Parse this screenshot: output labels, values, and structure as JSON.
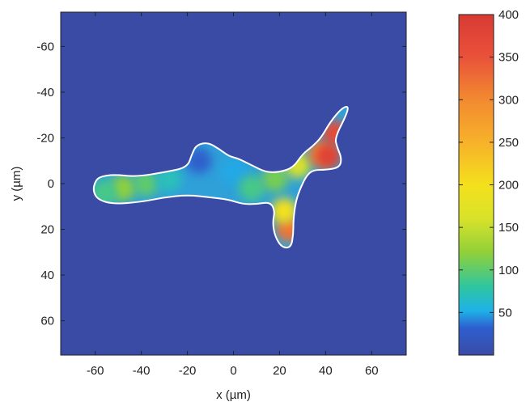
{
  "chart_data": {
    "type": "heatmap",
    "title": "",
    "xlabel": "x (µm)",
    "ylabel": "y (µm)",
    "xlim": [
      -75,
      75
    ],
    "ylim": [
      -75,
      75
    ],
    "y_inverted": true,
    "x_ticks": [
      -60,
      -40,
      -20,
      0,
      20,
      40,
      60
    ],
    "y_ticks": [
      -60,
      -40,
      -20,
      0,
      20,
      40,
      60
    ],
    "grid": false,
    "background_color": "#3a4ba6",
    "outline_color": "#ffffff",
    "colorbar": {
      "range": [
        0,
        400
      ],
      "ticks": [
        50,
        100,
        150,
        200,
        250,
        300,
        350,
        400
      ],
      "colormap": "jet"
    },
    "cell_outline": [
      [
        -58,
        -3
      ],
      [
        -52,
        -4
      ],
      [
        -42,
        -3
      ],
      [
        -30,
        -5
      ],
      [
        -20,
        -7
      ],
      [
        -18,
        -13
      ],
      [
        -16,
        -17
      ],
      [
        -11,
        -18
      ],
      [
        -6,
        -15
      ],
      [
        -2,
        -12
      ],
      [
        2,
        -11
      ],
      [
        8,
        -8
      ],
      [
        14,
        -5
      ],
      [
        20,
        -5
      ],
      [
        26,
        -7
      ],
      [
        30,
        -13
      ],
      [
        34,
        -16
      ],
      [
        38,
        -20
      ],
      [
        42,
        -27
      ],
      [
        47,
        -33
      ],
      [
        50,
        -34
      ],
      [
        49,
        -30
      ],
      [
        44,
        -20
      ],
      [
        45,
        -16
      ],
      [
        47,
        -11
      ],
      [
        46,
        -7
      ],
      [
        40,
        -6
      ],
      [
        35,
        -6
      ],
      [
        32,
        -4
      ],
      [
        29,
        2
      ],
      [
        27,
        8
      ],
      [
        26,
        16
      ],
      [
        26,
        22
      ],
      [
        25,
        28
      ],
      [
        21,
        28
      ],
      [
        18,
        23
      ],
      [
        17,
        17
      ],
      [
        18,
        12
      ],
      [
        16,
        8
      ],
      [
        10,
        9
      ],
      [
        4,
        9
      ],
      [
        -2,
        7
      ],
      [
        -10,
        6
      ],
      [
        -20,
        5
      ],
      [
        -30,
        6
      ],
      [
        -40,
        8
      ],
      [
        -52,
        9
      ],
      [
        -59,
        7
      ],
      [
        -61,
        3
      ],
      [
        -60,
        -1
      ]
    ],
    "stress_spots": [
      {
        "x": -48,
        "y": 2,
        "value": 120
      },
      {
        "x": -38,
        "y": 0,
        "value": 100
      },
      {
        "x": -28,
        "y": -2,
        "value": 70
      },
      {
        "x": -15,
        "y": -10,
        "value": 30
      },
      {
        "x": 0,
        "y": -5,
        "value": 50
      },
      {
        "x": 8,
        "y": 2,
        "value": 90
      },
      {
        "x": 18,
        "y": -2,
        "value": 110
      },
      {
        "x": 28,
        "y": -8,
        "value": 160
      },
      {
        "x": 38,
        "y": -13,
        "value": 300
      },
      {
        "x": 44,
        "y": -22,
        "value": 360
      },
      {
        "x": 41,
        "y": -12,
        "value": 380
      },
      {
        "x": 24,
        "y": 20,
        "value": 320
      },
      {
        "x": 22,
        "y": 12,
        "value": 200
      },
      {
        "x": -56,
        "y": 4,
        "value": 90
      }
    ]
  }
}
